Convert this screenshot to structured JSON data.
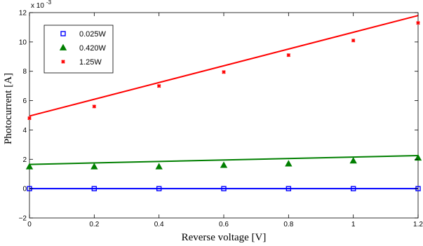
{
  "chart_data": {
    "type": "scatter",
    "xlabel": "Reverse voltage [V]",
    "ylabel": "Photocurrent [A]",
    "y_exponent_label": "x 10",
    "y_exponent_power": "-3",
    "xlim": [
      0,
      1.2
    ],
    "ylim": [
      -2,
      12
    ],
    "xticks": [
      "0",
      "0.2",
      "0.4",
      "0.6",
      "0.8",
      "1",
      "1.2"
    ],
    "yticks": [
      "−2",
      "0",
      "2",
      "4",
      "6",
      "8",
      "10",
      "12"
    ],
    "grid": false,
    "legend_position": "top-left",
    "x": [
      0,
      0.2,
      0.4,
      0.6,
      0.8,
      1.0,
      1.2
    ],
    "series": [
      {
        "name": "0.025W",
        "marker": "square",
        "color": "#0000ff",
        "values": [
          0.0,
          0.0,
          0.0,
          0.0,
          0.0,
          0.0,
          0.0
        ],
        "fit": [
          0.0,
          0.0
        ]
      },
      {
        "name": "0.420W",
        "marker": "triangle",
        "color": "#007f00",
        "values": [
          1.5,
          1.5,
          1.5,
          1.6,
          1.7,
          1.9,
          2.1
        ],
        "fit": [
          1.65,
          2.25
        ]
      },
      {
        "name": "1.25W",
        "marker": "x",
        "color": "#ff0000",
        "values": [
          4.8,
          5.6,
          7.0,
          7.95,
          9.1,
          10.1,
          11.3
        ],
        "fit": [
          4.95,
          11.8
        ]
      }
    ]
  }
}
